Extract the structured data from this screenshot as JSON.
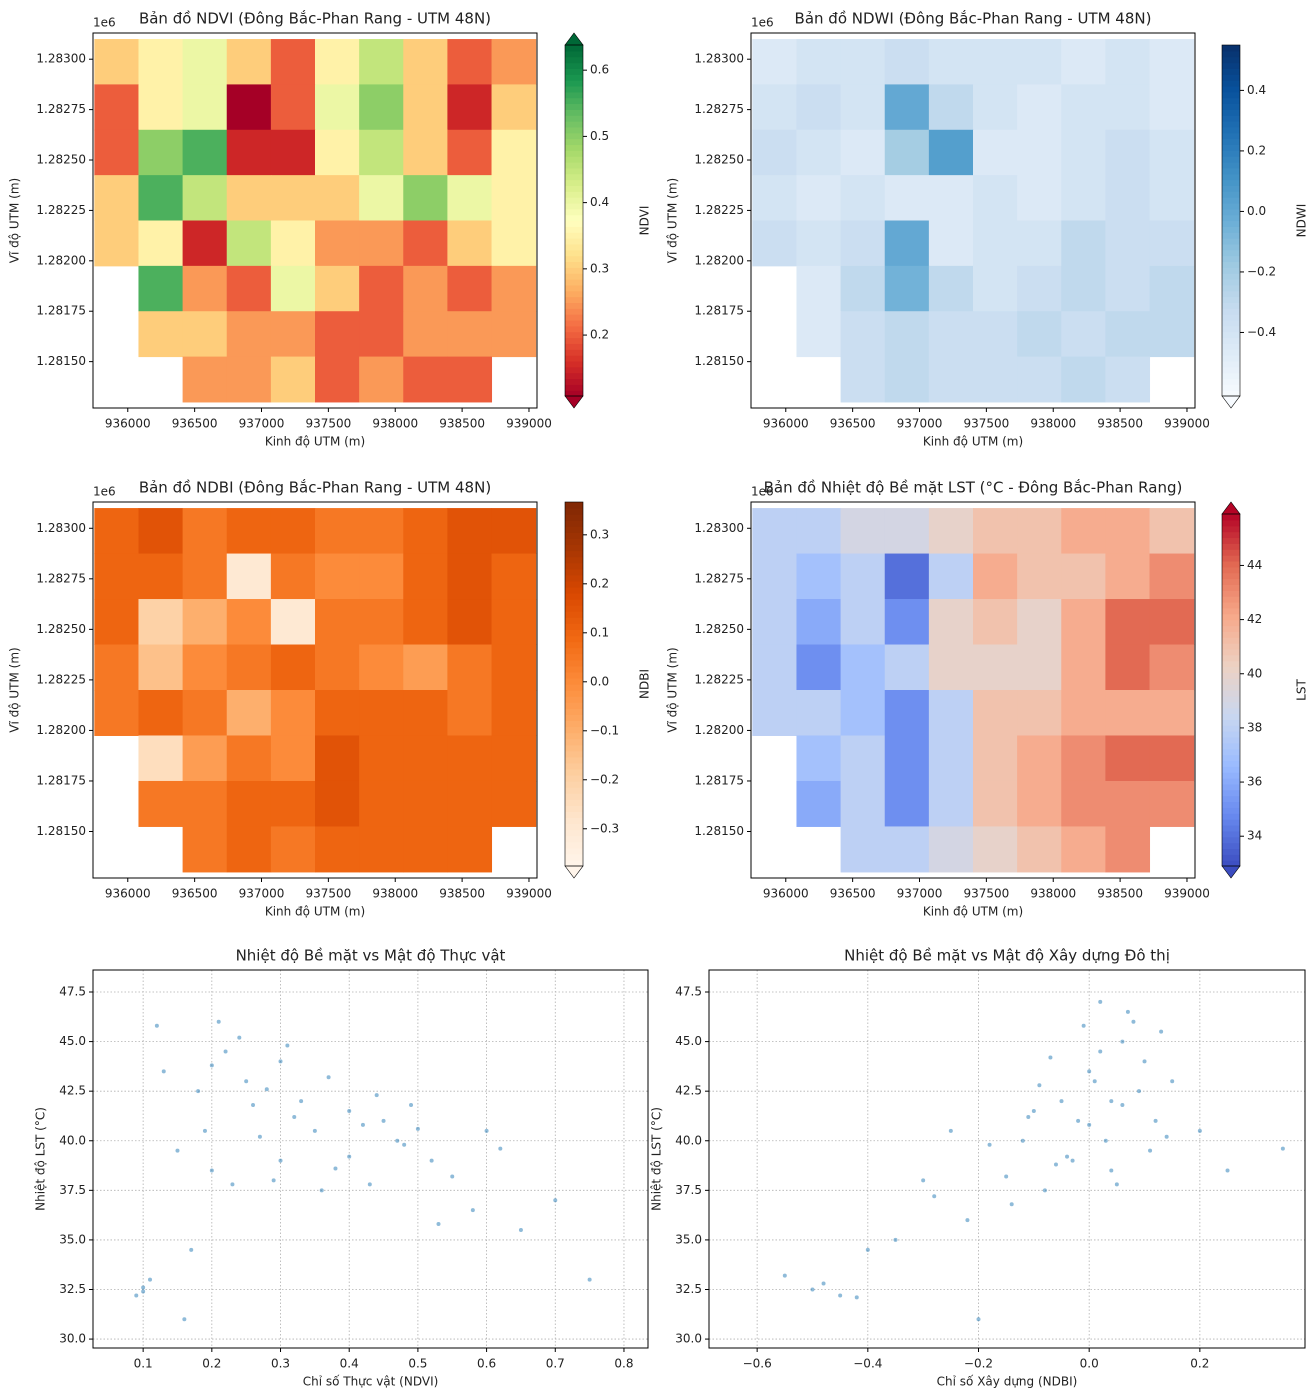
{
  "chart_data": [
    {
      "type": "heatmap",
      "title": "Bản đồ NDVI (Đông Bắc-Phan Rang - UTM 48N)",
      "xlabel": "Kinh độ UTM (m)",
      "ylabel": "Vĩ độ UTM (m)",
      "y_offset_text": "1e6",
      "colorbar_label": "NDVI",
      "extend": "both",
      "colormap": [
        "#a50026",
        "#d73027",
        "#f46d43",
        "#fdae61",
        "#fee08b",
        "#ffffbf",
        "#d9ef8b",
        "#a6d96a",
        "#66bd63",
        "#1a9850",
        "#006837"
      ],
      "clim": [
        0.108,
        0.638
      ],
      "cticks": [
        0.2,
        0.3,
        0.4,
        0.5,
        0.6
      ],
      "xlim": [
        935740,
        939060
      ],
      "ylim": [
        1281270,
        1283130
      ],
      "xticks": [
        936000,
        936500,
        937000,
        937500,
        938000,
        938500,
        939000
      ],
      "yticks": [
        {
          "value": 1281500,
          "label": "1.28150"
        },
        {
          "value": 1281750,
          "label": "1.28175"
        },
        {
          "value": 1282000,
          "label": "1.28200"
        },
        {
          "value": 1282250,
          "label": "1.28225"
        },
        {
          "value": 1282500,
          "label": "1.28250"
        },
        {
          "value": 1282750,
          "label": "1.28275"
        },
        {
          "value": 1283000,
          "label": "1.28300"
        }
      ],
      "x_edges": [
        935750,
        936080,
        936410,
        936740,
        937070,
        937400,
        937730,
        938060,
        938390,
        938720,
        939050
      ],
      "y_edges": [
        1283100,
        1282875,
        1282650,
        1282425,
        1282200,
        1281975,
        1281750,
        1281525,
        1281300
      ],
      "z": [
        [
          0.3,
          0.35,
          0.4,
          0.3,
          0.2,
          0.35,
          0.45,
          0.3,
          0.2,
          0.25
        ],
        [
          0.2,
          0.35,
          0.4,
          0.1,
          0.2,
          0.4,
          0.5,
          0.3,
          0.15,
          0.3
        ],
        [
          0.2,
          0.5,
          0.55,
          0.15,
          0.15,
          0.35,
          0.45,
          0.3,
          0.2,
          0.35
        ],
        [
          0.3,
          0.55,
          0.45,
          0.3,
          0.3,
          0.3,
          0.4,
          0.5,
          0.4,
          0.35
        ],
        [
          0.3,
          0.35,
          0.15,
          0.45,
          0.35,
          0.25,
          0.25,
          0.2,
          0.3,
          0.35
        ],
        [
          null,
          0.55,
          0.25,
          0.2,
          0.4,
          0.3,
          0.2,
          0.25,
          0.2,
          0.25
        ],
        [
          null,
          0.3,
          0.3,
          0.25,
          0.25,
          0.2,
          0.2,
          0.25,
          0.25,
          0.25
        ],
        [
          null,
          null,
          0.25,
          0.25,
          0.3,
          0.2,
          0.25,
          0.2,
          0.2,
          null
        ]
      ]
    },
    {
      "type": "heatmap",
      "title": "Bản đồ NDWI (Đông Bắc-Phan Rang - UTM 48N)",
      "xlabel": "Kinh độ UTM (m)",
      "ylabel": "Vĩ độ UTM (m)",
      "y_offset_text": "1e6",
      "colorbar_label": "NDWI",
      "extend": "min",
      "colormap": [
        "#f7fbff",
        "#deebf7",
        "#c6dbef",
        "#9ecae1",
        "#6baed6",
        "#4292c6",
        "#2171b5",
        "#08519c",
        "#08306b"
      ],
      "clim": [
        -0.61,
        0.55
      ],
      "cticks": [
        {
          "value": -0.4,
          "label": "−0.4"
        },
        {
          "value": -0.2,
          "label": "−0.2"
        },
        {
          "value": 0,
          "label": "0.0"
        },
        0.2,
        0.4
      ],
      "xlim": [
        935740,
        939060
      ],
      "ylim": [
        1281270,
        1283130
      ],
      "xticks": [
        936000,
        936500,
        937000,
        937500,
        938000,
        938500,
        939000
      ],
      "yticks": [
        {
          "value": 1281500,
          "label": "1.28150"
        },
        {
          "value": 1281750,
          "label": "1.28175"
        },
        {
          "value": 1282000,
          "label": "1.28200"
        },
        {
          "value": 1282250,
          "label": "1.28225"
        },
        {
          "value": 1282500,
          "label": "1.28250"
        },
        {
          "value": 1282750,
          "label": "1.28275"
        },
        {
          "value": 1283000,
          "label": "1.28300"
        }
      ],
      "x_edges": [
        935750,
        936080,
        936410,
        936740,
        937070,
        937400,
        937730,
        938060,
        938390,
        938720,
        939050
      ],
      "y_edges": [
        1283100,
        1282875,
        1282650,
        1282425,
        1282200,
        1281975,
        1281750,
        1281525,
        1281300
      ],
      "z": [
        [
          -0.45,
          -0.4,
          -0.4,
          -0.35,
          -0.4,
          -0.4,
          -0.4,
          -0.45,
          -0.4,
          -0.45
        ],
        [
          -0.4,
          -0.35,
          -0.4,
          0.0,
          -0.3,
          -0.4,
          -0.45,
          -0.4,
          -0.4,
          -0.45
        ],
        [
          -0.35,
          -0.4,
          -0.45,
          -0.2,
          0.05,
          -0.45,
          -0.45,
          -0.4,
          -0.35,
          -0.4
        ],
        [
          -0.4,
          -0.45,
          -0.4,
          -0.45,
          -0.45,
          -0.4,
          -0.45,
          -0.4,
          -0.35,
          -0.4
        ],
        [
          -0.35,
          -0.4,
          -0.35,
          0.0,
          -0.45,
          -0.4,
          -0.4,
          -0.3,
          -0.35,
          -0.35
        ],
        [
          null,
          -0.45,
          -0.3,
          -0.05,
          -0.3,
          -0.4,
          -0.35,
          -0.3,
          -0.35,
          -0.3
        ],
        [
          null,
          -0.45,
          -0.35,
          -0.3,
          -0.35,
          -0.35,
          -0.3,
          -0.35,
          -0.3,
          -0.3
        ],
        [
          null,
          null,
          -0.35,
          -0.3,
          -0.35,
          -0.35,
          -0.35,
          -0.3,
          -0.35,
          null
        ]
      ]
    },
    {
      "type": "heatmap",
      "title": "Bản đồ NDBI (Đông Bắc-Phan Rang - UTM 48N)",
      "xlabel": "Kinh độ UTM (m)",
      "ylabel": "Vĩ độ UTM (m)",
      "y_offset_text": "1e6",
      "colorbar_label": "NDBI",
      "extend": "min",
      "colormap": [
        "#fff5eb",
        "#fee6ce",
        "#fdd0a2",
        "#fdae6b",
        "#fd8d3c",
        "#f16913",
        "#d94801",
        "#a63603",
        "#7f2704"
      ],
      "clim": [
        -0.376,
        0.367
      ],
      "cticks": [
        {
          "value": -0.3,
          "label": "−0.3"
        },
        {
          "value": -0.2,
          "label": "−0.2"
        },
        {
          "value": -0.1,
          "label": "−0.1"
        },
        {
          "value": 0,
          "label": "0.0"
        },
        0.1,
        0.2,
        0.3
      ],
      "xlim": [
        935740,
        939060
      ],
      "ylim": [
        1281270,
        1283130
      ],
      "xticks": [
        936000,
        936500,
        937000,
        937500,
        938000,
        938500,
        939000
      ],
      "yticks": [
        {
          "value": 1281500,
          "label": "1.28150"
        },
        {
          "value": 1281750,
          "label": "1.28175"
        },
        {
          "value": 1282000,
          "label": "1.28200"
        },
        {
          "value": 1282250,
          "label": "1.28225"
        },
        {
          "value": 1282500,
          "label": "1.28250"
        },
        {
          "value": 1282750,
          "label": "1.28275"
        },
        {
          "value": 1283000,
          "label": "1.28300"
        }
      ],
      "x_edges": [
        935750,
        936080,
        936410,
        936740,
        937070,
        937400,
        937730,
        938060,
        938390,
        938720,
        939050
      ],
      "y_edges": [
        1283100,
        1282875,
        1282650,
        1282425,
        1282200,
        1281975,
        1281750,
        1281525,
        1281300
      ],
      "z": [
        [
          0.1,
          0.15,
          0.05,
          0.1,
          0.1,
          0.05,
          0.05,
          0.1,
          0.15,
          0.15
        ],
        [
          0.1,
          0.1,
          0.05,
          -0.3,
          0.05,
          0.0,
          0.0,
          0.1,
          0.15,
          0.1
        ],
        [
          0.1,
          -0.2,
          -0.1,
          0.0,
          -0.3,
          0.05,
          0.05,
          0.1,
          0.15,
          0.1
        ],
        [
          0.05,
          -0.15,
          0.0,
          0.05,
          0.1,
          0.05,
          0.0,
          -0.05,
          0.05,
          0.1
        ],
        [
          0.05,
          0.1,
          0.05,
          -0.1,
          0.0,
          0.1,
          0.1,
          0.1,
          0.05,
          0.1
        ],
        [
          null,
          -0.25,
          -0.05,
          0.05,
          0.0,
          0.15,
          0.1,
          0.1,
          0.1,
          0.1
        ],
        [
          null,
          0.05,
          0.05,
          0.1,
          0.1,
          0.15,
          0.1,
          0.1,
          0.1,
          0.1
        ],
        [
          null,
          null,
          0.05,
          0.1,
          0.05,
          0.1,
          0.1,
          0.1,
          0.1,
          null
        ]
      ]
    },
    {
      "type": "heatmap",
      "title": "Bản đồ Nhiệt độ Bề mặt LST (°C - Đông Bắc-Phan Rang)",
      "xlabel": "Kinh độ UTM (m)",
      "ylabel": "Vĩ độ UTM (m)",
      "y_offset_text": "1e6",
      "colorbar_label": "LST",
      "extend": "both",
      "colormap": [
        "#3b4cc0",
        "#6788ee",
        "#9abbff",
        "#c9d7f0",
        "#edd1c2",
        "#f7a889",
        "#e26952",
        "#b40426"
      ],
      "clim": [
        32.9,
        45.9
      ],
      "cticks": [
        34,
        36,
        38,
        40,
        42,
        44
      ],
      "xlim": [
        935740,
        939060
      ],
      "ylim": [
        1281270,
        1283130
      ],
      "xticks": [
        936000,
        936500,
        937000,
        937500,
        938000,
        938500,
        939000
      ],
      "yticks": [
        {
          "value": 1281500,
          "label": "1.28150"
        },
        {
          "value": 1281750,
          "label": "1.28175"
        },
        {
          "value": 1282000,
          "label": "1.28200"
        },
        {
          "value": 1282250,
          "label": "1.28225"
        },
        {
          "value": 1282500,
          "label": "1.28250"
        },
        {
          "value": 1282750,
          "label": "1.28275"
        },
        {
          "value": 1283000,
          "label": "1.28300"
        }
      ],
      "x_edges": [
        935750,
        936080,
        936410,
        936740,
        937070,
        937400,
        937730,
        938060,
        938390,
        938720,
        939050
      ],
      "y_edges": [
        1283100,
        1282875,
        1282650,
        1282425,
        1282200,
        1281975,
        1281750,
        1281525,
        1281300
      ],
      "z": [
        [
          38,
          38,
          39,
          39,
          40,
          41,
          41,
          42,
          42,
          41
        ],
        [
          38,
          37,
          38,
          34,
          38,
          42,
          41,
          41,
          42,
          43
        ],
        [
          38,
          36,
          38,
          35,
          40,
          41,
          40,
          42,
          44,
          44
        ],
        [
          38,
          35,
          37,
          38,
          40,
          40,
          40,
          42,
          44,
          43
        ],
        [
          38,
          38,
          37,
          35,
          38,
          41,
          41,
          42,
          42,
          42
        ],
        [
          null,
          37,
          38,
          35,
          38,
          41,
          42,
          43,
          44,
          44
        ],
        [
          null,
          36,
          38,
          35,
          38,
          41,
          42,
          43,
          43,
          43
        ],
        [
          null,
          null,
          38,
          38,
          39,
          40,
          41,
          42,
          43,
          null
        ]
      ]
    },
    {
      "type": "scatter",
      "title": "Nhiệt độ Bề mặt vs Mật độ Thực vật",
      "xlabel": "Chỉ số Thực vật (NDVI)",
      "ylabel": "Nhiệt độ LST (°C)",
      "color": "#1f77b4",
      "grid": true,
      "xlim": [
        0.027,
        0.835
      ],
      "ylim": [
        29.55,
        48.61
      ],
      "xticks": [
        0.1,
        0.2,
        0.3,
        0.4,
        0.5,
        0.6,
        0.7,
        0.8
      ],
      "yticks": [
        {
          "value": 30,
          "label": "30.0"
        },
        32.5,
        {
          "value": 35,
          "label": "35.0"
        },
        37.5,
        {
          "value": 40,
          "label": "40.0"
        },
        42.5,
        {
          "value": 45,
          "label": "45.0"
        },
        47.5
      ],
      "x": [
        0.09,
        0.1,
        0.11,
        0.1,
        0.12,
        0.16,
        0.17,
        0.18,
        0.2,
        0.22,
        0.24,
        0.25,
        0.26,
        0.28,
        0.3,
        0.32,
        0.35,
        0.38,
        0.4,
        0.42,
        0.45,
        0.48,
        0.5,
        0.15,
        0.2,
        0.23,
        0.27,
        0.3,
        0.33,
        0.36,
        0.4,
        0.44,
        0.47,
        0.52,
        0.55,
        0.58,
        0.6,
        0.65,
        0.7,
        0.75,
        0.13,
        0.19,
        0.21,
        0.29,
        0.31,
        0.37,
        0.43,
        0.49,
        0.53,
        0.62
      ],
      "y": [
        32.2,
        32.6,
        33.0,
        32.4,
        45.8,
        31.0,
        34.5,
        42.5,
        43.8,
        44.5,
        45.2,
        43.0,
        41.8,
        42.6,
        39.0,
        41.2,
        40.5,
        38.6,
        41.5,
        40.8,
        41.0,
        39.8,
        40.6,
        39.5,
        38.5,
        37.8,
        40.2,
        44.0,
        42.0,
        37.5,
        39.2,
        42.3,
        40.0,
        39.0,
        38.2,
        36.5,
        40.5,
        35.5,
        37.0,
        33.0,
        43.5,
        40.5,
        46.0,
        38.0,
        44.8,
        43.2,
        37.8,
        41.8,
        35.8,
        39.6
      ]
    },
    {
      "type": "scatter",
      "title": "Nhiệt độ Bề mặt vs Mật độ Xây dựng Đô thị",
      "xlabel": "Chỉ số Xây dựng (NDBI)",
      "ylabel": "Nhiệt độ LST (°C)",
      "color": "#1f77b4",
      "grid": true,
      "xlim": [
        -0.687,
        0.39
      ],
      "ylim": [
        29.55,
        48.61
      ],
      "xticks": [
        {
          "value": -0.6,
          "label": "−0.6"
        },
        {
          "value": -0.4,
          "label": "−0.4"
        },
        {
          "value": -0.2,
          "label": "−0.2"
        },
        {
          "value": 0,
          "label": "0.0"
        },
        0.2
      ],
      "yticks": [
        {
          "value": 30,
          "label": "30.0"
        },
        32.5,
        {
          "value": 35,
          "label": "35.0"
        },
        37.5,
        {
          "value": 40,
          "label": "40.0"
        },
        42.5,
        {
          "value": 45,
          "label": "45.0"
        },
        47.5
      ],
      "x": [
        -0.55,
        -0.5,
        -0.45,
        -0.42,
        -0.48,
        -0.2,
        -0.22,
        -0.3,
        -0.25,
        -0.15,
        -0.12,
        -0.1,
        -0.08,
        -0.05,
        -0.03,
        0.0,
        0.02,
        0.04,
        0.06,
        0.08,
        0.1,
        0.12,
        0.15,
        -0.18,
        -0.14,
        -0.09,
        -0.06,
        -0.02,
        0.01,
        0.03,
        0.05,
        0.07,
        0.09,
        0.11,
        0.13,
        -0.35,
        -0.28,
        -0.4,
        0.2,
        0.25,
        -0.07,
        -0.01,
        0.04,
        0.0,
        0.02,
        -0.04,
        0.06,
        -0.11,
        0.14,
        0.35
      ],
      "y": [
        33.2,
        32.5,
        32.2,
        32.1,
        32.8,
        31.0,
        36.0,
        38.0,
        40.5,
        38.2,
        40.0,
        41.5,
        37.5,
        42.0,
        39.0,
        43.5,
        44.5,
        42.0,
        45.0,
        46.0,
        44.0,
        41.0,
        43.0,
        39.8,
        36.8,
        42.8,
        38.8,
        41.0,
        43.0,
        40.0,
        37.8,
        46.5,
        42.5,
        39.5,
        45.5,
        35.0,
        37.2,
        34.5,
        40.5,
        38.5,
        44.2,
        45.8,
        38.5,
        40.8,
        47.0,
        39.2,
        41.8,
        41.2,
        40.2,
        39.6
      ]
    }
  ]
}
